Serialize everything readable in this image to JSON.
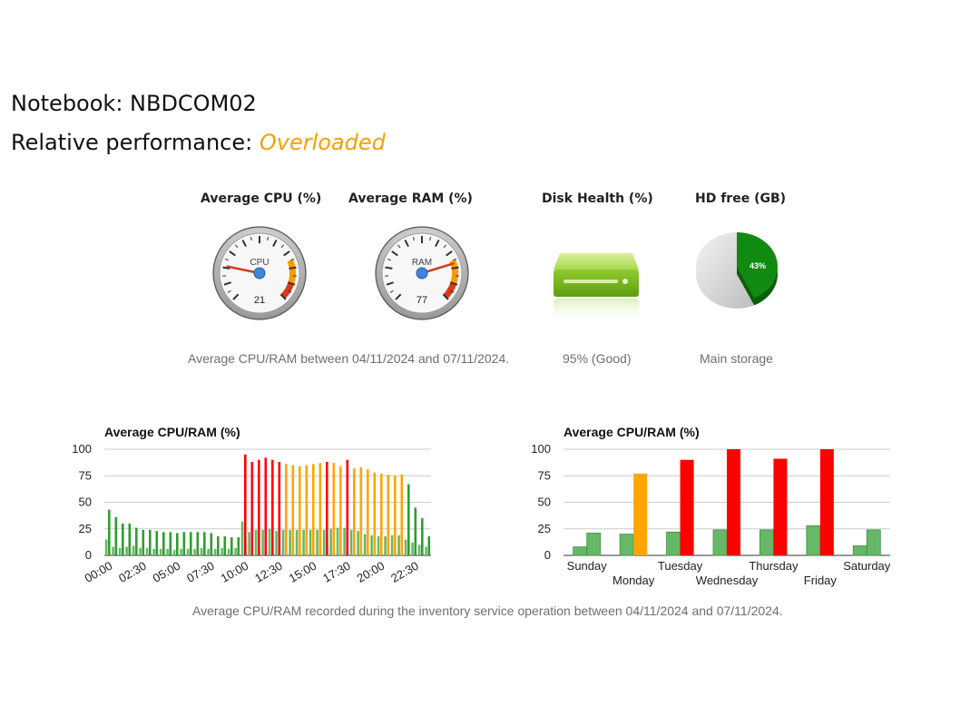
{
  "header": {
    "title": "Notebook: NBDCOM02",
    "performance_label": "Relative performance:",
    "performance_status": "Overloaded"
  },
  "metrics": {
    "cpu": {
      "label": "Average CPU (%)",
      "gauge_name": "CPU",
      "value": 21
    },
    "ram": {
      "label": "Average RAM (%)",
      "gauge_name": "RAM",
      "value": 77
    },
    "disk": {
      "label": "Disk Health (%)",
      "caption": "95% (Good)"
    },
    "hd": {
      "label": "HD free (GB)",
      "percent_label": "43%",
      "percent": 43,
      "caption": "Main storage"
    },
    "cpu_ram_caption": "Average CPU/RAM between 04/11/2024 and 07/11/2024."
  },
  "colors": {
    "green": "#2e9e2e",
    "green_light": "#66b866",
    "orange": "#ffa500",
    "red": "#ff0000",
    "status": "#f5a000"
  },
  "chart_data": [
    {
      "type": "bar",
      "title": "Average CPU/RAM (%)",
      "ylim": [
        0,
        100
      ],
      "yticks": [
        0,
        25,
        50,
        75,
        100
      ],
      "xtick_labels": [
        "00:00",
        "02:30",
        "05:00",
        "07:30",
        "10:00",
        "12:30",
        "15:00",
        "17:30",
        "20:00",
        "22:30"
      ],
      "x": [
        "00:00",
        "00:30",
        "01:00",
        "01:30",
        "02:00",
        "02:30",
        "03:00",
        "03:30",
        "04:00",
        "04:30",
        "05:00",
        "05:30",
        "06:00",
        "06:30",
        "07:00",
        "07:30",
        "08:00",
        "08:30",
        "09:00",
        "09:30",
        "10:00",
        "10:30",
        "11:00",
        "11:30",
        "12:00",
        "12:30",
        "13:00",
        "13:30",
        "14:00",
        "14:30",
        "15:00",
        "15:30",
        "16:00",
        "16:30",
        "17:00",
        "17:30",
        "18:00",
        "18:30",
        "19:00",
        "19:30",
        "20:00",
        "20:30",
        "21:00",
        "21:30",
        "22:00",
        "22:30",
        "23:00",
        "23:30"
      ],
      "series": [
        {
          "values": [
            15,
            8,
            7,
            8,
            9,
            7,
            7,
            6,
            6,
            6,
            5,
            6,
            6,
            6,
            7,
            6,
            6,
            7,
            6,
            7,
            32,
            22,
            24,
            24,
            25,
            23,
            24,
            24,
            24,
            24,
            24,
            24,
            24,
            25,
            26,
            26,
            24,
            23,
            20,
            19,
            18,
            18,
            19,
            19,
            15,
            12,
            10,
            8
          ]
        },
        {
          "values": [
            43,
            36,
            30,
            30,
            26,
            24,
            24,
            23,
            22,
            22,
            21,
            22,
            22,
            22,
            22,
            21,
            18,
            18,
            17,
            17,
            95,
            88,
            90,
            92,
            90,
            88,
            86,
            85,
            84,
            85,
            86,
            87,
            88,
            87,
            84,
            90,
            82,
            83,
            81,
            78,
            77,
            76,
            75,
            76,
            67,
            45,
            35,
            18
          ]
        }
      ]
    },
    {
      "type": "bar",
      "title": "Average CPU/RAM (%)",
      "ylim": [
        0,
        100
      ],
      "yticks": [
        0,
        25,
        50,
        75,
        100
      ],
      "categories": [
        "Sunday",
        "Monday",
        "Tuesday",
        "Wednesday",
        "Thursday",
        "Friday",
        "Saturday"
      ],
      "series": [
        {
          "values": [
            8,
            20,
            22,
            24,
            24,
            28,
            9
          ]
        },
        {
          "values": [
            21,
            77,
            90,
            100,
            91,
            100,
            24
          ]
        }
      ]
    }
  ],
  "charts_caption": "Average CPU/RAM recorded during the inventory service operation between 04/11/2024 and 07/11/2024."
}
